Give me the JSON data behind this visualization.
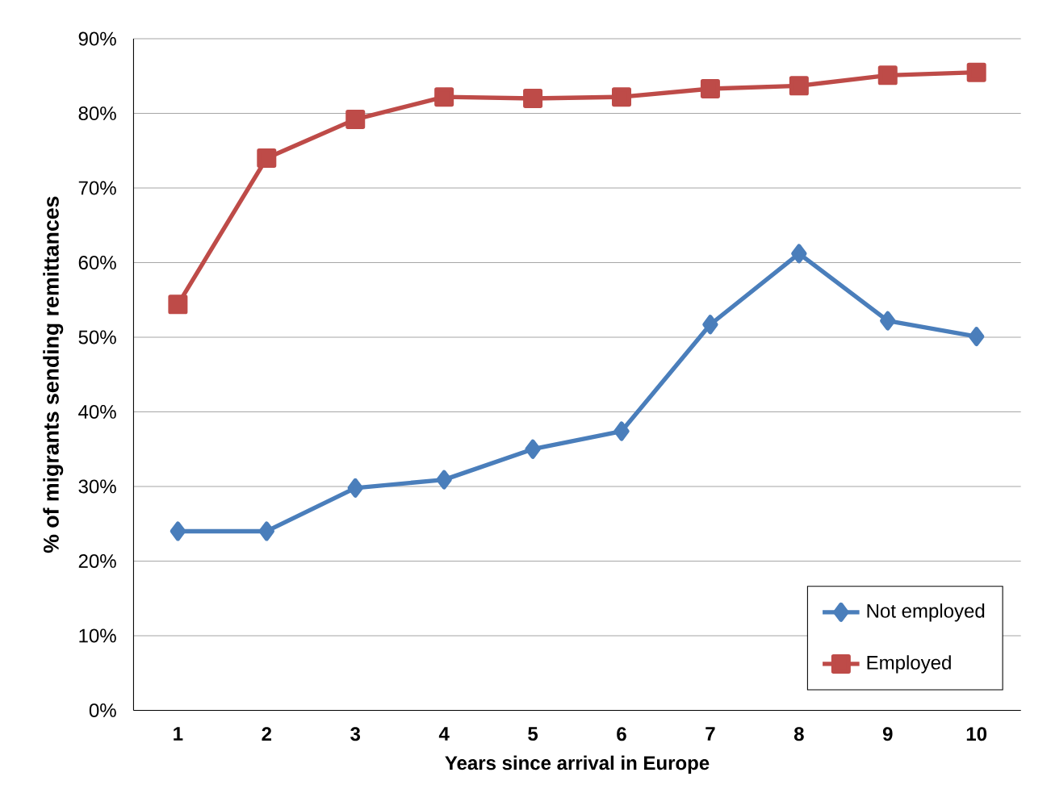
{
  "chart_data": {
    "type": "line",
    "xlabel": "Years since arrival in Europe",
    "ylabel": "% of migrants sending remittances",
    "categories": [
      "1",
      "2",
      "3",
      "4",
      "5",
      "6",
      "7",
      "8",
      "9",
      "10"
    ],
    "series": [
      {
        "name": "Not employed",
        "color": "#4a7ebb",
        "marker": "diamond",
        "values": [
          24.0,
          24.0,
          29.8,
          30.9,
          35.0,
          37.4,
          51.7,
          61.2,
          52.2,
          50.1
        ]
      },
      {
        "name": "Employed",
        "color": "#be4b48",
        "marker": "square",
        "values": [
          54.4,
          74.0,
          79.2,
          82.2,
          82.0,
          82.2,
          83.3,
          83.7,
          85.1,
          85.5
        ]
      }
    ],
    "ylim": [
      0,
      90
    ],
    "yticks": [
      {
        "value": 0,
        "label": "0%"
      },
      {
        "value": 10,
        "label": "10%"
      },
      {
        "value": 20,
        "label": "20%"
      },
      {
        "value": 30,
        "label": "30%"
      },
      {
        "value": 40,
        "label": "40%"
      },
      {
        "value": 50,
        "label": "50%"
      },
      {
        "value": 60,
        "label": "60%"
      },
      {
        "value": 70,
        "label": "70%"
      },
      {
        "value": 80,
        "label": "80%"
      },
      {
        "value": 90,
        "label": "90%"
      }
    ],
    "grid": "y",
    "legend": "bottom right"
  }
}
